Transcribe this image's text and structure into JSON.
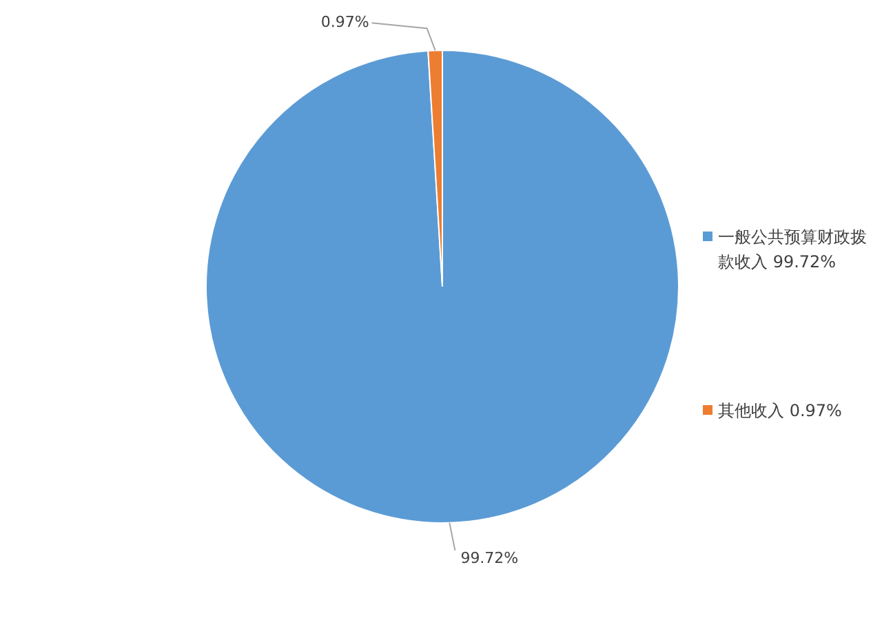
{
  "chart_data": {
    "type": "pie",
    "categories": [
      "一般公共预算财政拨款收入",
      "其他收入"
    ],
    "values": [
      99.72,
      0.97
    ],
    "colors": [
      "#5b9bd5",
      "#ed7d31"
    ],
    "value_labels": [
      "99.72%",
      "0.97%"
    ],
    "legend": "right"
  }
}
